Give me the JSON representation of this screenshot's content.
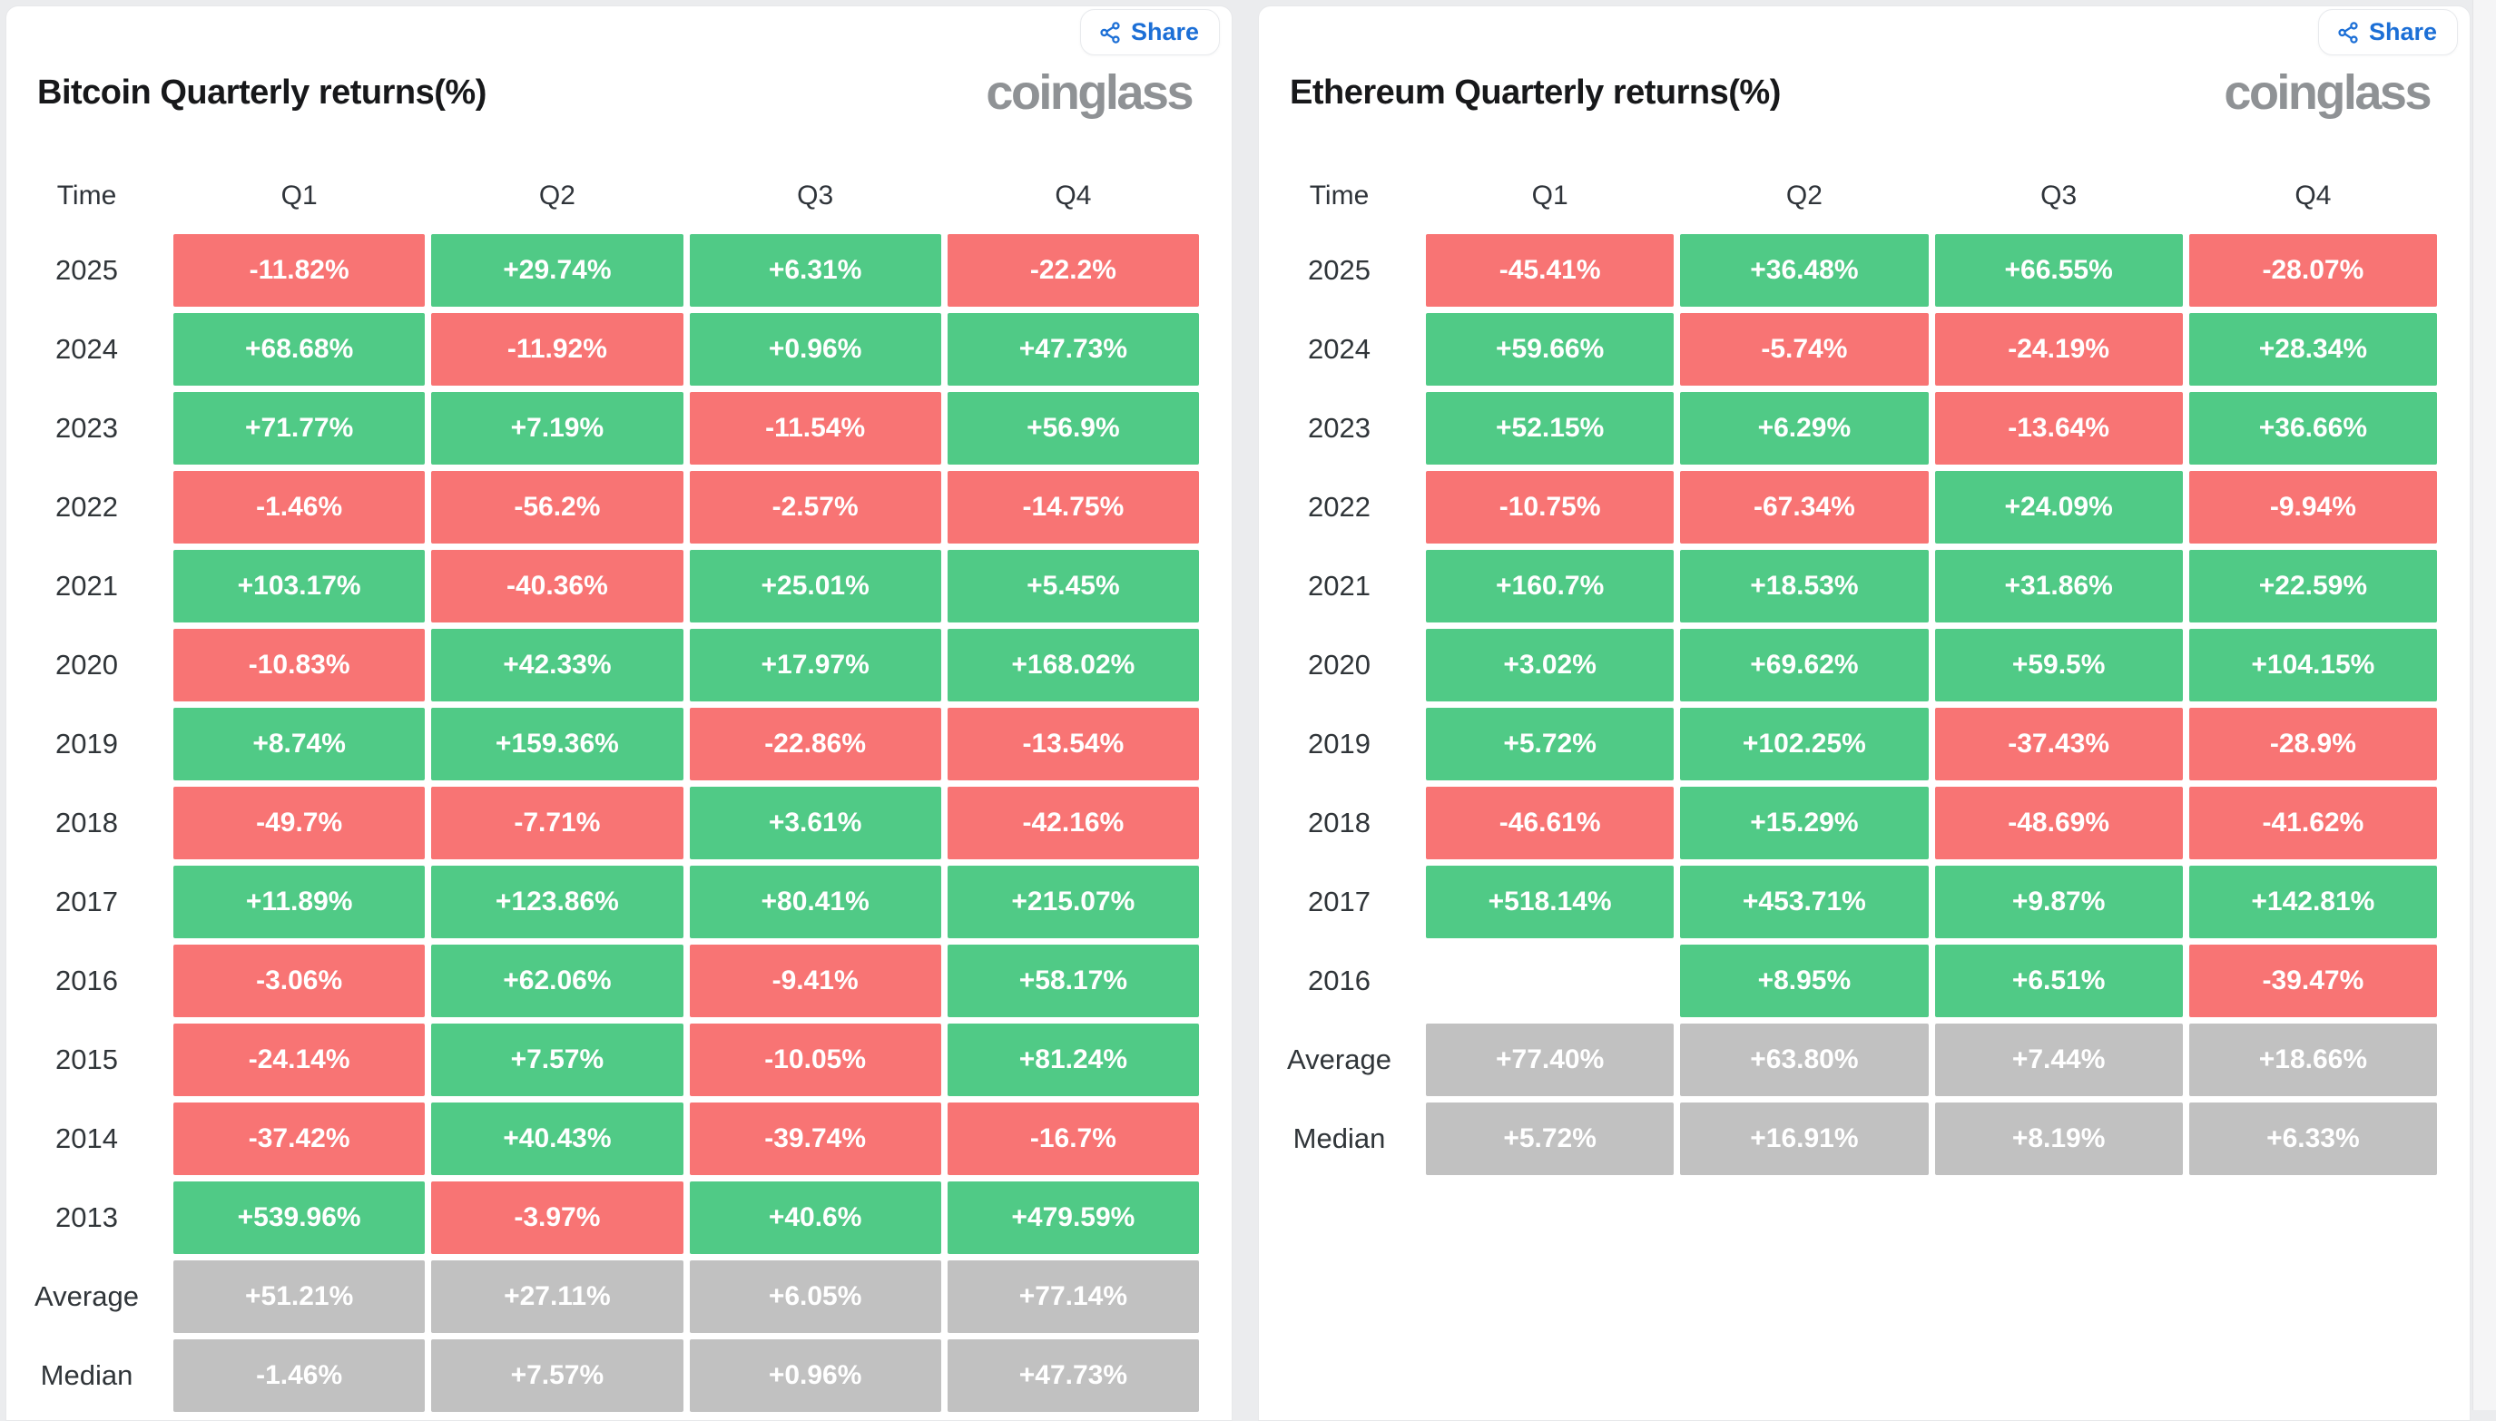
{
  "brand": "coinglass",
  "share_label": "Share",
  "colors": {
    "positive_green": "#50ca86",
    "negative_red": "#f87474",
    "summary_gray": "#c1c1c1",
    "share_blue": "#1c6fd6",
    "logo_gray": "#8f9295",
    "card_background": "#ffffff",
    "page_background": "#ebecee"
  },
  "tables": [
    {
      "title": "Bitcoin Quarterly returns(%)",
      "columns": [
        "Time",
        "Q1",
        "Q2",
        "Q3",
        "Q4"
      ],
      "rows": [
        {
          "label": "2025",
          "type": "data",
          "values": [
            "-11.82%",
            "+29.74%",
            "+6.31%",
            "-22.2%"
          ]
        },
        {
          "label": "2024",
          "type": "data",
          "values": [
            "+68.68%",
            "-11.92%",
            "+0.96%",
            "+47.73%"
          ]
        },
        {
          "label": "2023",
          "type": "data",
          "values": [
            "+71.77%",
            "+7.19%",
            "-11.54%",
            "+56.9%"
          ]
        },
        {
          "label": "2022",
          "type": "data",
          "values": [
            "-1.46%",
            "-56.2%",
            "-2.57%",
            "-14.75%"
          ]
        },
        {
          "label": "2021",
          "type": "data",
          "values": [
            "+103.17%",
            "-40.36%",
            "+25.01%",
            "+5.45%"
          ]
        },
        {
          "label": "2020",
          "type": "data",
          "values": [
            "-10.83%",
            "+42.33%",
            "+17.97%",
            "+168.02%"
          ]
        },
        {
          "label": "2019",
          "type": "data",
          "values": [
            "+8.74%",
            "+159.36%",
            "-22.86%",
            "-13.54%"
          ]
        },
        {
          "label": "2018",
          "type": "data",
          "values": [
            "-49.7%",
            "-7.71%",
            "+3.61%",
            "-42.16%"
          ]
        },
        {
          "label": "2017",
          "type": "data",
          "values": [
            "+11.89%",
            "+123.86%",
            "+80.41%",
            "+215.07%"
          ]
        },
        {
          "label": "2016",
          "type": "data",
          "values": [
            "-3.06%",
            "+62.06%",
            "-9.41%",
            "+58.17%"
          ]
        },
        {
          "label": "2015",
          "type": "data",
          "values": [
            "-24.14%",
            "+7.57%",
            "-10.05%",
            "+81.24%"
          ]
        },
        {
          "label": "2014",
          "type": "data",
          "values": [
            "-37.42%",
            "+40.43%",
            "-39.74%",
            "-16.7%"
          ]
        },
        {
          "label": "2013",
          "type": "data",
          "values": [
            "+539.96%",
            "-3.97%",
            "+40.6%",
            "+479.59%"
          ]
        },
        {
          "label": "Average",
          "type": "summary",
          "values": [
            "+51.21%",
            "+27.11%",
            "+6.05%",
            "+77.14%"
          ]
        },
        {
          "label": "Median",
          "type": "summary",
          "values": [
            "-1.46%",
            "+7.57%",
            "+0.96%",
            "+47.73%"
          ]
        }
      ]
    },
    {
      "title": "Ethereum Quarterly returns(%)",
      "columns": [
        "Time",
        "Q1",
        "Q2",
        "Q3",
        "Q4"
      ],
      "rows": [
        {
          "label": "2025",
          "type": "data",
          "values": [
            "-45.41%",
            "+36.48%",
            "+66.55%",
            "-28.07%"
          ]
        },
        {
          "label": "2024",
          "type": "data",
          "values": [
            "+59.66%",
            "-5.74%",
            "-24.19%",
            "+28.34%"
          ]
        },
        {
          "label": "2023",
          "type": "data",
          "values": [
            "+52.15%",
            "+6.29%",
            "-13.64%",
            "+36.66%"
          ]
        },
        {
          "label": "2022",
          "type": "data",
          "values": [
            "-10.75%",
            "-67.34%",
            "+24.09%",
            "-9.94%"
          ]
        },
        {
          "label": "2021",
          "type": "data",
          "values": [
            "+160.7%",
            "+18.53%",
            "+31.86%",
            "+22.59%"
          ]
        },
        {
          "label": "2020",
          "type": "data",
          "values": [
            "+3.02%",
            "+69.62%",
            "+59.5%",
            "+104.15%"
          ]
        },
        {
          "label": "2019",
          "type": "data",
          "values": [
            "+5.72%",
            "+102.25%",
            "-37.43%",
            "-28.9%"
          ]
        },
        {
          "label": "2018",
          "type": "data",
          "values": [
            "-46.61%",
            "+15.29%",
            "-48.69%",
            "-41.62%"
          ]
        },
        {
          "label": "2017",
          "type": "data",
          "values": [
            "+518.14%",
            "+453.71%",
            "+9.87%",
            "+142.81%"
          ]
        },
        {
          "label": "2016",
          "type": "data",
          "values": [
            "",
            "+8.95%",
            "+6.51%",
            "-39.47%"
          ]
        },
        {
          "label": "Average",
          "type": "summary",
          "values": [
            "+77.40%",
            "+63.80%",
            "+7.44%",
            "+18.66%"
          ]
        },
        {
          "label": "Median",
          "type": "summary",
          "values": [
            "+5.72%",
            "+16.91%",
            "+8.19%",
            "+6.33%"
          ]
        }
      ]
    }
  ],
  "chart_data": [
    {
      "type": "heatmap",
      "title": "Bitcoin Quarterly returns(%)",
      "columns": [
        "Q1",
        "Q2",
        "Q3",
        "Q4"
      ],
      "rows": [
        "2025",
        "2024",
        "2023",
        "2022",
        "2021",
        "2020",
        "2019",
        "2018",
        "2017",
        "2016",
        "2015",
        "2014",
        "2013",
        "Average",
        "Median"
      ],
      "values": [
        [
          -11.82,
          29.74,
          6.31,
          -22.2
        ],
        [
          68.68,
          -11.92,
          0.96,
          47.73
        ],
        [
          71.77,
          7.19,
          -11.54,
          56.9
        ],
        [
          -1.46,
          -56.2,
          -2.57,
          -14.75
        ],
        [
          103.17,
          -40.36,
          25.01,
          5.45
        ],
        [
          -10.83,
          42.33,
          17.97,
          168.02
        ],
        [
          8.74,
          159.36,
          -22.86,
          -13.54
        ],
        [
          -49.7,
          -7.71,
          3.61,
          -42.16
        ],
        [
          11.89,
          123.86,
          80.41,
          215.07
        ],
        [
          -3.06,
          62.06,
          -9.41,
          58.17
        ],
        [
          -24.14,
          7.57,
          -10.05,
          81.24
        ],
        [
          -37.42,
          40.43,
          -39.74,
          -16.7
        ],
        [
          539.96,
          -3.97,
          40.6,
          479.59
        ],
        [
          51.21,
          27.11,
          6.05,
          77.14
        ],
        [
          -1.46,
          7.57,
          0.96,
          47.73
        ]
      ],
      "legend_position": "none",
      "color_rule": "green if positive, red if negative, gray for Average/Median summary rows"
    },
    {
      "type": "heatmap",
      "title": "Ethereum Quarterly returns(%)",
      "columns": [
        "Q1",
        "Q2",
        "Q3",
        "Q4"
      ],
      "rows": [
        "2025",
        "2024",
        "2023",
        "2022",
        "2021",
        "2020",
        "2019",
        "2018",
        "2017",
        "2016",
        "Average",
        "Median"
      ],
      "values": [
        [
          -45.41,
          36.48,
          66.55,
          -28.07
        ],
        [
          59.66,
          -5.74,
          -24.19,
          28.34
        ],
        [
          52.15,
          6.29,
          -13.64,
          36.66
        ],
        [
          -10.75,
          -67.34,
          24.09,
          -9.94
        ],
        [
          160.7,
          18.53,
          31.86,
          22.59
        ],
        [
          3.02,
          69.62,
          59.5,
          104.15
        ],
        [
          5.72,
          102.25,
          -37.43,
          -28.9
        ],
        [
          -46.61,
          15.29,
          -48.69,
          -41.62
        ],
        [
          518.14,
          453.71,
          9.87,
          142.81
        ],
        [
          null,
          8.95,
          6.51,
          -39.47
        ],
        [
          77.4,
          63.8,
          7.44,
          18.66
        ],
        [
          5.72,
          16.91,
          8.19,
          6.33
        ]
      ],
      "legend_position": "none",
      "color_rule": "green if positive, red if negative, gray for Average/Median summary rows; 2016 Q1 missing"
    }
  ]
}
